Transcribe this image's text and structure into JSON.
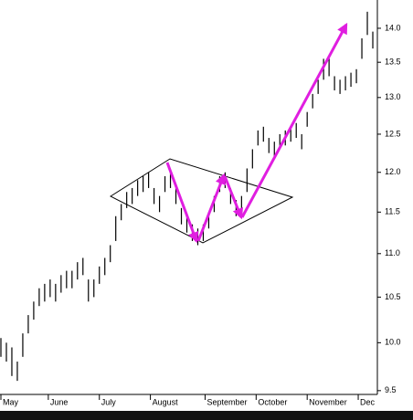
{
  "chart_data": {
    "type": "ohlc",
    "x": [
      0,
      3,
      6,
      9,
      12,
      15,
      18,
      21,
      24,
      27,
      30,
      33,
      36,
      39,
      42,
      45,
      48,
      51,
      54,
      57,
      60,
      63,
      66,
      69,
      72,
      75,
      78,
      81,
      84,
      87,
      90,
      93,
      96,
      99,
      102,
      105,
      108,
      111,
      114,
      117,
      120,
      123,
      126,
      129,
      132,
      135,
      138,
      141,
      144,
      147,
      150,
      153,
      156,
      159,
      162,
      165,
      168,
      171,
      174,
      177,
      180,
      183,
      186,
      189,
      192,
      195,
      198,
      201,
      204
    ],
    "high": [
      10.05,
      10.0,
      9.95,
      9.8,
      10.1,
      10.3,
      10.45,
      10.6,
      10.65,
      10.7,
      10.65,
      10.75,
      10.8,
      10.8,
      10.9,
      10.95,
      10.7,
      10.7,
      10.85,
      10.95,
      11.1,
      11.45,
      11.6,
      11.75,
      11.8,
      11.9,
      11.95,
      12.0,
      11.8,
      11.7,
      11.95,
      12.0,
      11.8,
      11.55,
      11.45,
      11.35,
      11.3,
      11.35,
      11.5,
      11.7,
      11.95,
      12.0,
      11.8,
      11.65,
      11.7,
      12.05,
      12.3,
      12.55,
      12.6,
      12.45,
      12.4,
      12.5,
      12.55,
      12.6,
      12.65,
      12.5,
      12.8,
      13.05,
      13.25,
      13.55,
      13.6,
      13.3,
      13.25,
      13.3,
      13.35,
      13.4,
      13.85,
      14.25,
      13.95
    ],
    "low": [
      9.85,
      9.8,
      9.65,
      9.6,
      9.85,
      10.1,
      10.25,
      10.4,
      10.45,
      10.5,
      10.45,
      10.55,
      10.6,
      10.6,
      10.7,
      10.75,
      10.45,
      10.5,
      10.65,
      10.75,
      10.9,
      11.15,
      11.4,
      11.55,
      11.6,
      11.7,
      11.75,
      11.8,
      11.6,
      11.5,
      11.75,
      11.8,
      11.6,
      11.35,
      11.25,
      11.15,
      11.1,
      11.15,
      11.3,
      11.5,
      11.75,
      11.8,
      11.6,
      11.45,
      11.5,
      11.75,
      12.05,
      12.35,
      12.4,
      12.25,
      12.2,
      12.3,
      12.35,
      12.4,
      12.45,
      12.3,
      12.6,
      12.85,
      13.05,
      13.25,
      13.3,
      13.1,
      13.05,
      13.1,
      13.15,
      13.2,
      13.55,
      13.9,
      13.7
    ],
    "color": "#000000",
    "xlim": [
      0,
      206
    ],
    "xticks": [
      {
        "value": 0,
        "label": "May"
      },
      {
        "value": 26,
        "label": "June"
      },
      {
        "value": 54,
        "label": "July"
      },
      {
        "value": 82,
        "label": "August"
      },
      {
        "value": 112,
        "label": "September"
      },
      {
        "value": 140,
        "label": "October"
      },
      {
        "value": 168,
        "label": "November"
      },
      {
        "value": 196,
        "label": "Dec"
      }
    ],
    "ylim": [
      9.48,
      14.43
    ],
    "yticks": [
      9.5,
      {
        "value": 10,
        "label": "10.0"
      },
      10.5,
      {
        "value": 11,
        "label": "11.0"
      },
      11.5,
      {
        "value": 12,
        "label": "12.0"
      },
      12.5,
      {
        "value": 13,
        "label": "13.0"
      },
      13.5,
      {
        "value": 14,
        "label": "14.0"
      }
    ],
    "log_scale": true
  }
}
